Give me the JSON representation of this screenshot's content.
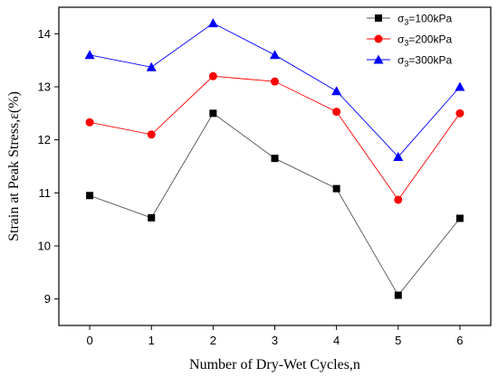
{
  "chart_data": {
    "type": "line",
    "x": [
      0,
      1,
      2,
      3,
      4,
      5,
      6
    ],
    "xlabel": "Number of Dry-Wet Cycles,n",
    "ylabel": "Strain at Peak Stress,ε(%)",
    "xlim": [
      -0.5,
      6.5
    ],
    "ylim": [
      8.5,
      14.5
    ],
    "xticks": [
      "0",
      "1",
      "2",
      "3",
      "4",
      "5",
      "6"
    ],
    "yticks": [
      "9",
      "10",
      "11",
      "12",
      "13",
      "14"
    ],
    "grid": false,
    "legend_position": "top-right",
    "series": [
      {
        "name_prefix": "σ",
        "name_sub": "3",
        "name_suffix": "=100kPa",
        "marker": "square",
        "color": "#000000",
        "line_color": "#555555",
        "values": [
          10.95,
          10.53,
          12.5,
          11.65,
          11.08,
          9.07,
          10.52
        ]
      },
      {
        "name_prefix": "σ",
        "name_sub": "3",
        "name_suffix": "=200kPa",
        "marker": "circle",
        "color": "#ff0000",
        "line_color": "#ff0000",
        "values": [
          12.33,
          12.1,
          13.2,
          13.1,
          12.53,
          10.87,
          12.5
        ]
      },
      {
        "name_prefix": "σ",
        "name_sub": "3",
        "name_suffix": "=300kPa",
        "marker": "triangle",
        "color": "#0000ff",
        "line_color": "#0000ff",
        "values": [
          13.6,
          13.37,
          14.2,
          13.6,
          12.92,
          11.68,
          13.0
        ]
      }
    ]
  }
}
